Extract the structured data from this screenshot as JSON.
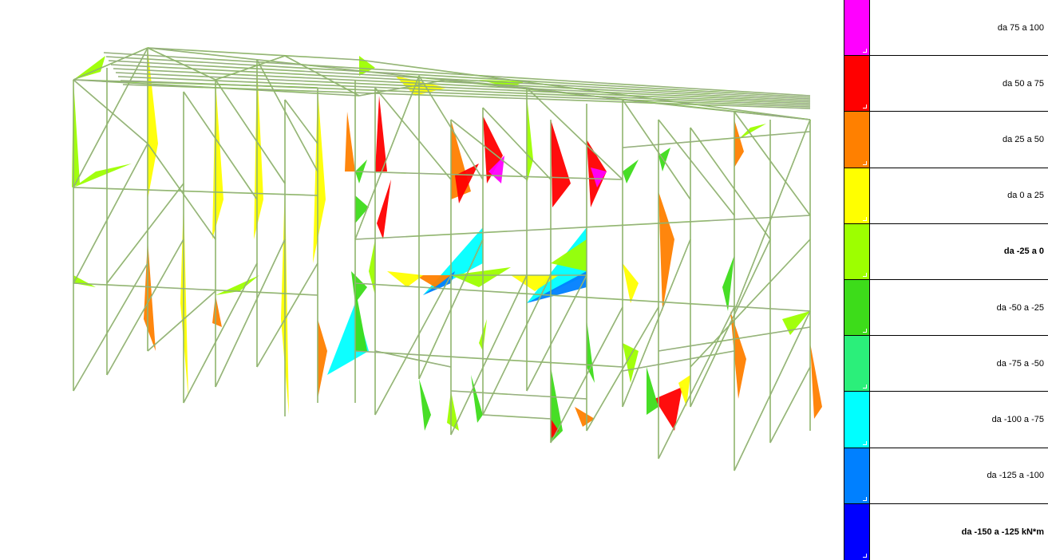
{
  "legend": {
    "items": [
      {
        "label": "da 75 a 100",
        "color": "#ff00ff",
        "bold": false
      },
      {
        "label": "da 50 a 75",
        "color": "#ff0000",
        "bold": false
      },
      {
        "label": "da 25 a 50",
        "color": "#ff8000",
        "bold": false
      },
      {
        "label": "da 0 a 25",
        "color": "#ffff00",
        "bold": false
      },
      {
        "label": "da -25 a 0",
        "color": "#9dff00",
        "bold": true
      },
      {
        "label": "da -50 a -25",
        "color": "#3ddc1a",
        "bold": false
      },
      {
        "label": "da -75 a -50",
        "color": "#2bef7a",
        "bold": false
      },
      {
        "label": "da -100 a -75",
        "color": "#00ffff",
        "bold": false
      },
      {
        "label": "da -125 a -100",
        "color": "#0080ff",
        "bold": false
      },
      {
        "label": "da -150 a -125 kN*m",
        "color": "#0000ff",
        "bold": true
      }
    ]
  },
  "model": {
    "member_color": "#a0a0a0",
    "diagram_colors": {
      "yellow": "#ffff00",
      "light_green": "#9dff00",
      "green": "#3ddc1a",
      "orange": "#ff8000",
      "red": "#ff0000",
      "magenta": "#ff00ff",
      "cyan": "#00ffff",
      "blue": "#0080ff"
    }
  }
}
